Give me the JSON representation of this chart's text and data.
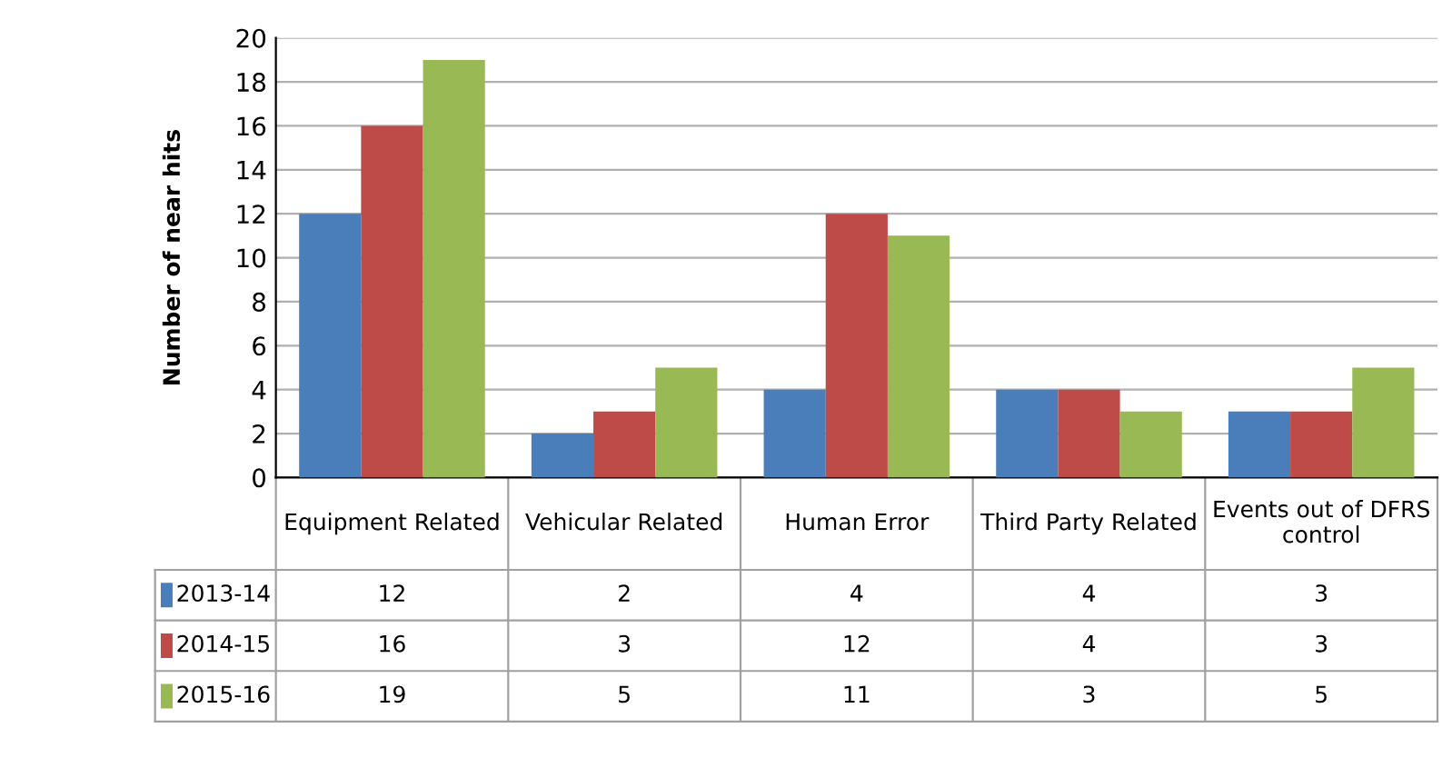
{
  "chart_data": {
    "type": "bar",
    "ylabel": "Number of near hits",
    "categories": [
      "Equipment Related",
      "Vehicular Related",
      "Human Error",
      "Third Party Related",
      "Events out of DFRS control"
    ],
    "series": [
      {
        "name": "2013-14",
        "color": "#4a7ebb",
        "values": [
          12,
          2,
          4,
          4,
          3
        ]
      },
      {
        "name": "2014-15",
        "color": "#be4b48",
        "values": [
          16,
          3,
          12,
          4,
          3
        ]
      },
      {
        "name": "2015-16",
        "color": "#98b954",
        "values": [
          19,
          5,
          11,
          3,
          5
        ]
      }
    ],
    "ylim": [
      0,
      20
    ],
    "yticks": [
      0,
      2,
      4,
      6,
      8,
      10,
      12,
      14,
      16,
      18,
      20
    ],
    "grid": "y",
    "data_labels": true,
    "legend": "bottom left"
  }
}
